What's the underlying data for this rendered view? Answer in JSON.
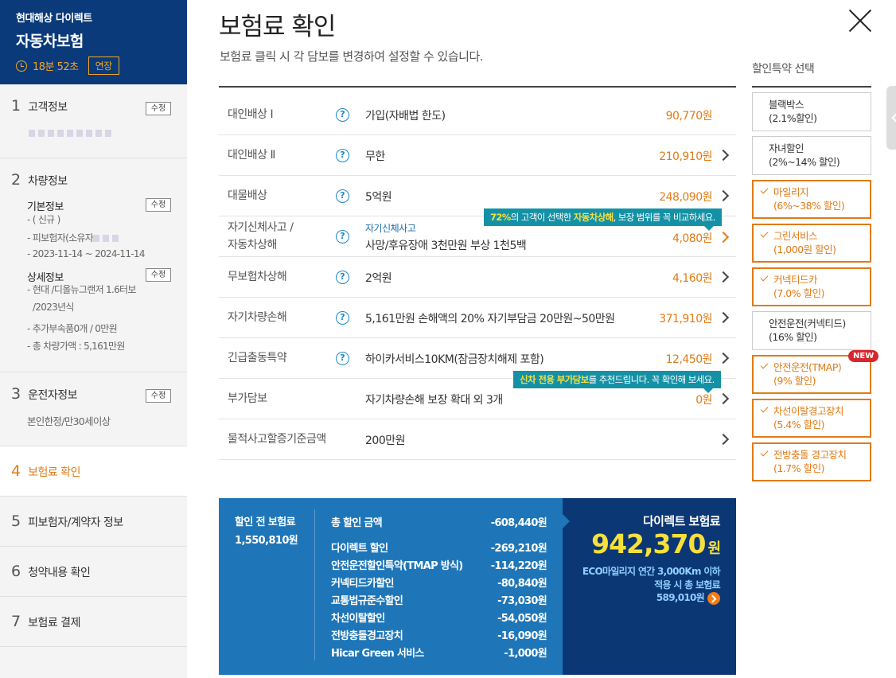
{
  "brand": {
    "company": "현대해상 다이렉트",
    "product": "자동차보험",
    "timer": "18분 52초",
    "extend": "연장"
  },
  "steps": [
    {
      "num": "1",
      "label": "고객정보",
      "edit": "수정"
    },
    {
      "num": "2",
      "label": "차량정보"
    },
    {
      "num": "3",
      "label": "운전자정보",
      "edit": "수정",
      "detail": "본인한정/만30세이상"
    },
    {
      "num": "4",
      "label": "보험료 확인"
    },
    {
      "num": "5",
      "label": "피보험자/계약자 정보"
    },
    {
      "num": "6",
      "label": "청약내용 확인"
    },
    {
      "num": "7",
      "label": "보험료 결제"
    }
  ],
  "vehicle": {
    "basic": "기본정보",
    "basic_edit": "수정",
    "basic_lines": [
      "- ( 신규 )",
      "- 피보험자(소유자",
      "- 2023-11-14 ~ 2024-11-14"
    ],
    "detail": "상세정보",
    "detail_edit": "수정",
    "detail_lines": [
      "- 현대 /디올뉴그랜저 1.6터보",
      "/2023년식",
      "- 추가부속품0개 / 0만원",
      "- 총 차량가액 : 5,161만원"
    ]
  },
  "main": {
    "title": "보험료 확인",
    "desc": "보험료 클릭 시 각 담보를 변경하여 설정할 수 있습니다.",
    "help": "?"
  },
  "coverages": [
    {
      "label": "대인배상 Ⅰ",
      "value": "가입(자배법 한도)",
      "price": "90,770원"
    },
    {
      "label": "대인배상 Ⅱ",
      "value": "무한",
      "price": "210,910원"
    },
    {
      "label": "대물배상",
      "value": "5억원",
      "price": "248,090원"
    },
    {
      "label1": "자기신체사고 /",
      "label2": "자동차상해",
      "sub": "자기신체사고",
      "value": "사망/후유장애 3천만원 부상 1천5백",
      "price": "4,080원"
    },
    {
      "label": "무보험차상해",
      "value": "2억원",
      "price": "4,160원"
    },
    {
      "label": "자기차량손해",
      "value": "5,161만원 손해액의 20% 자기부담금 20만원~50만원",
      "price": "371,910원"
    },
    {
      "label": "긴급출동특약",
      "value": "하이카서비스10KM(잠금장치해제 포함)",
      "price": "12,450원"
    },
    {
      "label": "부가담보",
      "value": "자기차량손해 보장 확대 외 3개",
      "price": "0원"
    },
    {
      "label": "물적사고할증기준금액",
      "value": "200만원"
    }
  ],
  "tips": {
    "t1a": "72%",
    "t1b": "의 고객이 선택한 ",
    "t1c": "자동차상해",
    "t1d": ", 보장 범위를 꼭 비교하세요.",
    "t2a": "신차 전용 부가담보",
    "t2b": "를 추천드립니다. 꼭 확인해 보세요."
  },
  "discounts": {
    "title": "할인특약 선택",
    "items": [
      {
        "l1": "블랙박스",
        "l2": "(2.1%할인)"
      },
      {
        "l1": "자녀할인",
        "l2": "(2%~14% 할인)"
      },
      {
        "l1": "마일리지",
        "l2": "(6%~38% 할인)"
      },
      {
        "l1": "그린서비스",
        "l2": "(1,000원 할인)"
      },
      {
        "l1": "커넥티드카",
        "l2": "(7.0% 할인)"
      },
      {
        "l1": "안전운전(커넥티드)",
        "l2": "(16% 할인)"
      },
      {
        "l1": "안전운전(TMAP)",
        "l2": "(9% 할인)"
      },
      {
        "l1": "차선이탈경고장치",
        "l2": "(5.4% 할인)"
      },
      {
        "l1": "전방충돌 경고장치",
        "l2": "(1.7% 할인)"
      }
    ],
    "new_badge": "NEW"
  },
  "summary": {
    "pre_label": "할인 전 보험료",
    "pre_value": "1,550,810원",
    "total_label": "총 할인 금액",
    "total_value": "-608,440원",
    "rows": [
      {
        "label": "다이렉트 할인",
        "value": "-269,210원"
      },
      {
        "label": "안전운전할인특약(TMAP 방식)",
        "value": "-114,220원"
      },
      {
        "label": "커넥티드카할인",
        "value": "-80,840원"
      },
      {
        "label": "교통법규준수할인",
        "value": "-73,030원"
      },
      {
        "label": "차선이탈할인",
        "value": "-54,050원"
      },
      {
        "label": "전방충돌경고장치",
        "value": "-16,090원"
      },
      {
        "label": "Hicar Green 서비스",
        "value": "-1,000원"
      }
    ],
    "direct_title": "다이렉트 보험료",
    "direct_amount": "942,370",
    "direct_unit": "원",
    "eco1": "ECO마일리지 연간 3,000Km 이하",
    "eco2": "적용 시 총 보험료",
    "eco3": "589,010원"
  },
  "colors": {
    "brand": "#0a3a7a",
    "accent": "#e07b16",
    "blue": "#1e76b8",
    "navy": "#0c3775",
    "tip": "#1591a6"
  }
}
